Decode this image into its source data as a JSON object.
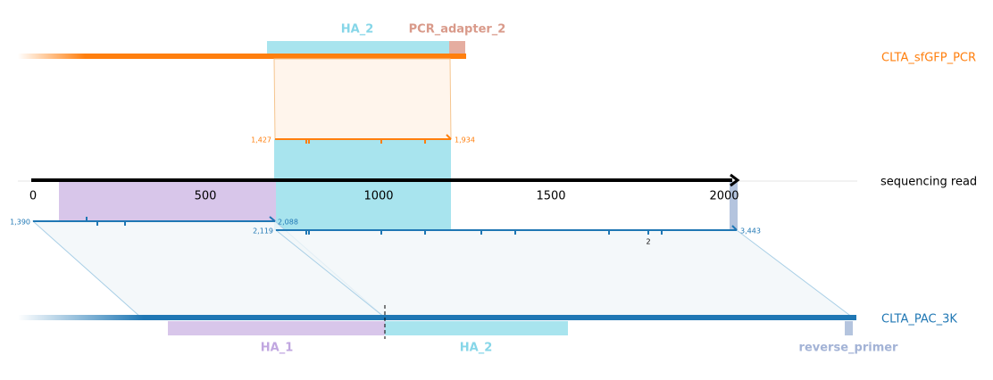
{
  "tracks": [
    {
      "label": "CLTA_sfGFP_PCR"
    },
    {
      "label": "sequencing read"
    },
    {
      "label": "CLTA_PAC_3K"
    }
  ],
  "top_features": [
    {
      "label": "HA_2"
    },
    {
      "label": "PCR_adapter_2"
    }
  ],
  "bottom_features": [
    {
      "label": "HA_1"
    },
    {
      "label": "HA_2"
    },
    {
      "label": "reverse_primer"
    }
  ],
  "axis_ticks": [
    "0",
    "500",
    "1000",
    "1500",
    "2000"
  ],
  "alignments": [
    {
      "start": "1,427",
      "end": "1,934"
    },
    {
      "start": "1,390",
      "end": "2,088"
    },
    {
      "start": "2,119",
      "end": "3,443"
    }
  ],
  "mismatch_count": "2"
}
